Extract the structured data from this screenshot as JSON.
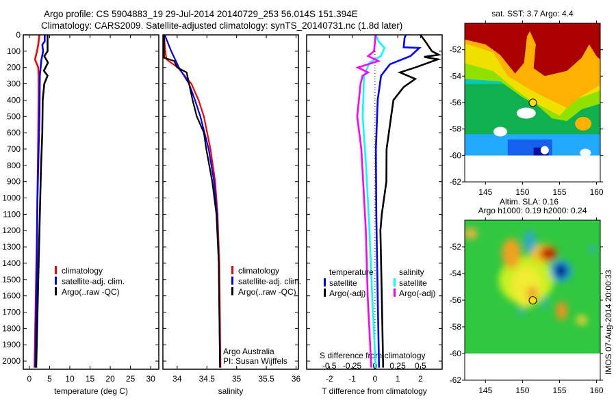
{
  "header": {
    "title_line1": "Argo profile: CS 5904883_19 29-Jul-2014 20140729_253 56.014S 151.394E",
    "title_line2": "Climatology: CARS2009. Satellite-adjusted climatology: synTS_20140731.nc (1.8d later)"
  },
  "credits": {
    "org": "Argo Australia",
    "pi": "PI: Susan Wijffels",
    "imos_stamp": "IMOS 07-Aug-2014 20:00:33"
  },
  "chart_data": [
    {
      "id": "temperature",
      "type": "line",
      "xlabel": "temperature (deg C)",
      "ylabel": "",
      "xlim": [
        -1.5,
        32
      ],
      "ylim": [
        0,
        2050
      ],
      "xticks": [
        0,
        5,
        10,
        15,
        20,
        25,
        30
      ],
      "yticks": [
        0,
        100,
        200,
        300,
        400,
        500,
        600,
        700,
        800,
        900,
        1000,
        1100,
        1200,
        1300,
        1400,
        1500,
        1600,
        1700,
        1800,
        1900,
        2000
      ],
      "legend": [
        "climatology",
        "satellite-adj. clim.",
        "Argo(..raw -QC)"
      ],
      "series": [
        {
          "name": "climatology",
          "color": "#ff0000",
          "depth": [
            0,
            60,
            100,
            150,
            200,
            250,
            400,
            800,
            1200,
            1600,
            2040
          ],
          "x": [
            2.5,
            2.2,
            1.9,
            1.4,
            2.2,
            2.3,
            2.3,
            2.1,
            1.9,
            1.6,
            1.3
          ]
        },
        {
          "name": "satellite-adj. clim.",
          "color": "#0000ff",
          "depth": [
            0,
            40,
            60,
            100,
            150,
            250,
            500,
            1000,
            1500,
            2040
          ],
          "x": [
            3.8,
            3.8,
            3.2,
            3.4,
            3.0,
            2.6,
            2.5,
            2.0,
            1.8,
            1.5
          ]
        },
        {
          "name": "Argo(..raw -QC)",
          "color": "#000000",
          "depth": [
            0,
            100,
            130,
            170,
            220,
            250,
            300,
            400,
            600,
            800,
            1000,
            1500,
            2040
          ],
          "x": [
            4.5,
            4.5,
            3.7,
            4.6,
            3.6,
            4.5,
            3.7,
            3.3,
            3.2,
            2.9,
            2.7,
            2.2,
            1.7
          ]
        }
      ]
    },
    {
      "id": "salinity",
      "type": "line",
      "xlabel": "salinity",
      "xlim": [
        33.76,
        36.04
      ],
      "ylim": [
        0,
        2050
      ],
      "xticks": [
        34,
        34.5,
        35,
        35.5,
        36
      ],
      "legend": [
        "climatology",
        "satellite-adj. clim.",
        "Argo(..raw -QC)"
      ],
      "series": [
        {
          "name": "climatology",
          "color": "#ff0000",
          "depth": [
            0,
            100,
            150,
            200,
            300,
            400,
            500,
            700,
            900,
            1100,
            1400,
            2040
          ],
          "x": [
            33.78,
            33.8,
            33.82,
            34.01,
            34.24,
            34.36,
            34.45,
            34.56,
            34.64,
            34.68,
            34.71,
            34.73
          ]
        },
        {
          "name": "satellite-adj. clim.",
          "color": "#0000ff",
          "depth": [
            0,
            100,
            200,
            300,
            400,
            500,
            700,
            900,
            1100,
            1400,
            2040
          ],
          "x": [
            33.79,
            33.9,
            34.03,
            34.2,
            34.3,
            34.39,
            34.53,
            34.62,
            34.67,
            34.7,
            34.72
          ]
        },
        {
          "name": "Argo(..raw -QC)",
          "color": "#000000",
          "depth": [
            0,
            100,
            140,
            160,
            200,
            230,
            300,
            400,
            500,
            600,
            700,
            900,
            1100,
            1400,
            2040
          ],
          "x": [
            33.78,
            33.78,
            33.78,
            33.95,
            34.0,
            34.16,
            34.2,
            34.26,
            34.33,
            34.45,
            34.49,
            34.59,
            34.66,
            34.7,
            34.72
          ]
        }
      ]
    },
    {
      "id": "difference",
      "type": "line",
      "xlabel": "T difference from climatology",
      "xlabel_secondary": "S difference from climatology",
      "xlim": [
        -3,
        2.95
      ],
      "xlim_secondary": [
        -0.75,
        0.7375
      ],
      "ylim": [
        0,
        2050
      ],
      "xticks": [
        -2,
        -1,
        0,
        1,
        2
      ],
      "xticks_secondary": [
        -0.5,
        -0.25,
        0,
        0.25,
        0.5
      ],
      "xtick_labels_secondary": [
        "-0.5",
        "-0.25",
        "0",
        "0.25",
        "0.5"
      ],
      "legend_headers": [
        "temperature",
        "salinity"
      ],
      "legend": [
        "satellite",
        "Argo(-adj)",
        "satellite",
        "Argo(-adj)"
      ],
      "series": [
        {
          "name": "temperature satellite",
          "axis": "T",
          "color": "#0000ff",
          "depth": [
            0,
            20,
            76,
            80,
            130,
            180,
            250,
            400,
            700,
            1100,
            1600,
            2040
          ],
          "x": [
            1.35,
            1.3,
            1.26,
            1.95,
            1.56,
            0.66,
            0.27,
            0.12,
            0.04,
            0.06,
            0.12,
            0.18
          ]
        },
        {
          "name": "temperature Argo(-adj)",
          "axis": "T",
          "color": "#000000",
          "depth": [
            0,
            50,
            100,
            122,
            135,
            150,
            200,
            230,
            270,
            320,
            400,
            550,
            700,
            900,
            1100,
            1200,
            1600,
            2040
          ],
          "x": [
            2.0,
            2.26,
            2.5,
            2.8,
            2.16,
            2.76,
            1.77,
            1.1,
            1.77,
            1.26,
            0.81,
            0.66,
            0.51,
            0.5,
            0.3,
            0.24,
            0.3,
            0.36
          ]
        },
        {
          "name": "salinity satellite",
          "axis": "S",
          "color": "#00ffff",
          "depth": [
            0,
            40,
            80,
            130,
            170,
            250,
            500,
            800,
            1200,
            1600,
            2040
          ],
          "x": [
            0.008,
            0.04,
            0.105,
            0.065,
            -0.06,
            -0.12,
            -0.135,
            -0.098,
            -0.06,
            -0.03,
            0.008
          ]
        },
        {
          "name": "salinity Argo(-adj)",
          "axis": "S",
          "color": "#ff00ff",
          "depth": [
            0,
            100,
            130,
            160,
            200,
            230,
            250,
            300,
            500,
            700,
            1000,
            1200,
            1600,
            2040
          ],
          "x": [
            0.008,
            -0.01,
            -0.075,
            0.038,
            -0.188,
            -0.075,
            -0.135,
            -0.158,
            -0.195,
            -0.15,
            -0.12,
            -0.1,
            -0.08,
            -0.04
          ]
        }
      ]
    },
    {
      "id": "sst-map",
      "type": "heatmap",
      "title": "sat. SST: 3.7 Argo: 4.4",
      "xlim": [
        142.2,
        160.5
      ],
      "ylim": [
        -62,
        -50
      ],
      "xticks": [
        145,
        150,
        155,
        160
      ],
      "yticks": [
        -52,
        -54,
        -56,
        -58,
        -60,
        -62
      ],
      "marker": {
        "lon": 151.394,
        "lat": -56.014,
        "color": "#ffdd00"
      }
    },
    {
      "id": "sla-map",
      "type": "heatmap",
      "title_line1": "Altim. SLA: 0.16",
      "title_line2": "Argo h1000: 0.19 h2000: 0.24",
      "xlim": [
        142.2,
        160.5
      ],
      "ylim": [
        -62,
        -50
      ],
      "xticks": [
        145,
        150,
        155,
        160
      ],
      "yticks": [
        -52,
        -54,
        -56,
        -58,
        -60,
        -62
      ],
      "marker": {
        "lon": 151.394,
        "lat": -56.014,
        "color": "#ffdd00"
      }
    }
  ]
}
